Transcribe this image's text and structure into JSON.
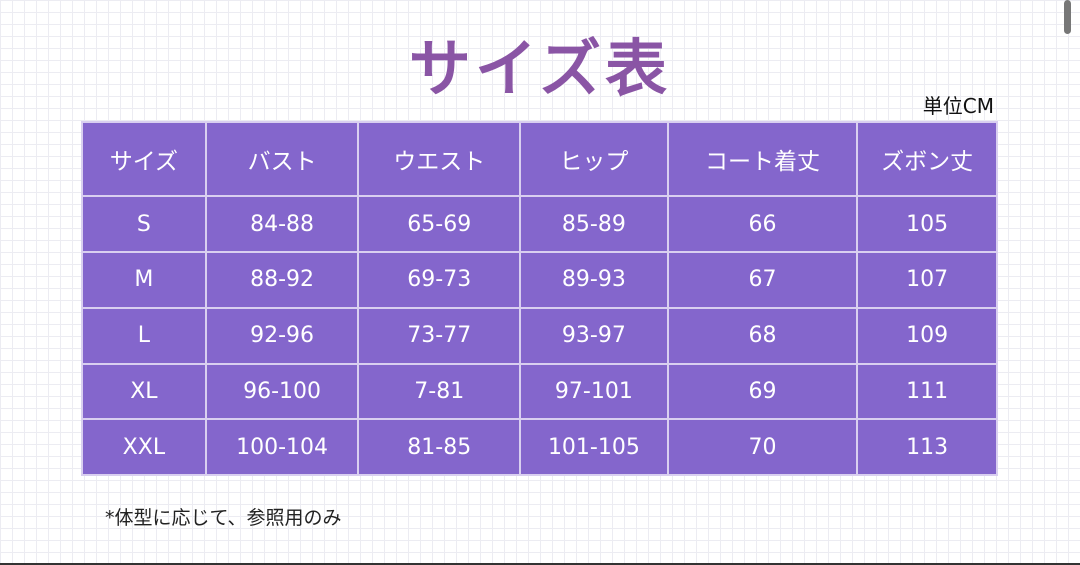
{
  "title": "サイズ表",
  "unit": "単位CM",
  "table": {
    "headers": [
      "サイズ",
      "バスト",
      "ウエスト",
      "ヒップ",
      "コート着丈",
      "ズボン丈"
    ],
    "rows": [
      [
        "S",
        "84-88",
        "65-69",
        "85-89",
        "66",
        "105"
      ],
      [
        "M",
        "88-92",
        "69-73",
        "89-93",
        "67",
        "107"
      ],
      [
        "L",
        "92-96",
        "73-77",
        "93-97",
        "68",
        "109"
      ],
      [
        "XL",
        "96-100",
        "7-81",
        "97-101",
        "69",
        "111"
      ],
      [
        "XXL",
        "100-104",
        "81-85",
        "101-105",
        "70",
        "113"
      ]
    ]
  },
  "note": "*体型に応じて、参照用のみ",
  "colors": {
    "table": "#8466cc",
    "title": "#8a55a5"
  }
}
